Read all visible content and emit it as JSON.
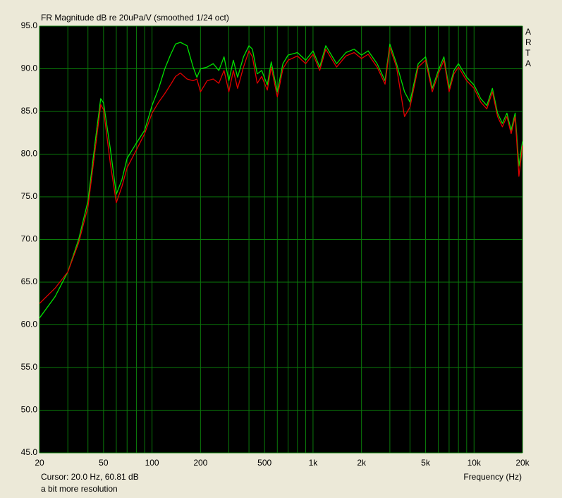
{
  "chart_data": {
    "type": "line",
    "title": "FR Magnitude dB re 20uPa/V (smoothed 1/24 oct)",
    "side_label": "ARTA",
    "cursor_readout": "Cursor: 20.0 Hz, 60.81 dB",
    "note": "a bit more resolution",
    "x_label": "Frequency (Hz)",
    "x_log": true,
    "grid": true,
    "xlim": [
      20,
      20000
    ],
    "ylim": [
      45,
      95
    ],
    "xticks": [
      20,
      50,
      100,
      200,
      500,
      {
        "value": 1000,
        "label": "1k"
      },
      {
        "value": 2000,
        "label": "2k"
      },
      {
        "value": 5000,
        "label": "5k"
      },
      {
        "value": 10000,
        "label": "10k"
      },
      {
        "value": 20000,
        "label": "20k"
      }
    ],
    "x_minor_ticks": [
      30,
      40,
      60,
      70,
      80,
      90,
      300,
      400,
      600,
      700,
      800,
      900,
      3000,
      4000,
      6000,
      7000,
      8000,
      9000
    ],
    "yticks": [
      {
        "value": 95,
        "label": "95.0"
      },
      {
        "value": 90,
        "label": "90.0"
      },
      {
        "value": 85,
        "label": "85.0"
      },
      {
        "value": 80,
        "label": "80.0"
      },
      {
        "value": 75,
        "label": "75.0"
      },
      {
        "value": 70,
        "label": "70.0"
      },
      {
        "value": 65,
        "label": "65.0"
      },
      {
        "value": 60,
        "label": "60.0"
      },
      {
        "value": 55,
        "label": "55.0"
      },
      {
        "value": 50,
        "label": "50.0"
      },
      {
        "value": 45,
        "label": "45.0"
      }
    ],
    "x": [
      20,
      25,
      30,
      35,
      40,
      45,
      48,
      50,
      55,
      60,
      65,
      70,
      80,
      90,
      100,
      110,
      120,
      130,
      140,
      150,
      165,
      180,
      190,
      200,
      220,
      240,
      260,
      280,
      300,
      320,
      340,
      370,
      400,
      420,
      450,
      480,
      520,
      550,
      600,
      650,
      700,
      800,
      900,
      1000,
      1100,
      1200,
      1400,
      1600,
      1800,
      2000,
      2200,
      2500,
      2800,
      3000,
      3300,
      3700,
      4000,
      4500,
      5000,
      5500,
      6000,
      6500,
      7000,
      7500,
      8000,
      9000,
      10000,
      11000,
      12000,
      13000,
      14000,
      15000,
      16000,
      17000,
      18000,
      19000,
      20000
    ],
    "series": [
      {
        "color": "#00e000",
        "values": [
          60.8,
          63.3,
          66.2,
          70,
          74.5,
          82.4,
          86.5,
          86,
          80.7,
          75.3,
          77,
          79.5,
          81.3,
          82.8,
          85.7,
          87.7,
          90,
          91.6,
          92.9,
          93.1,
          92.7,
          90.2,
          89,
          90,
          90.2,
          90.6,
          89.8,
          91.4,
          88.6,
          91,
          89,
          91.4,
          92.7,
          92.3,
          89.4,
          89.8,
          88.1,
          90.8,
          87.3,
          90.6,
          91.6,
          91.9,
          91,
          92.1,
          90.2,
          92.7,
          90.6,
          91.9,
          92.3,
          91.6,
          92.1,
          90.6,
          88.6,
          92.9,
          90.6,
          87.3,
          86.1,
          90.6,
          91.4,
          87.7,
          89.8,
          91.4,
          87.7,
          89.8,
          90.6,
          89,
          88.1,
          86.5,
          85.7,
          87.7,
          84.8,
          83.6,
          84.8,
          82.8,
          84.8,
          78.6,
          81.5
        ]
      },
      {
        "color": "#e00000",
        "values": [
          62.5,
          64.3,
          66.2,
          69.6,
          73.8,
          81.5,
          85.8,
          85.2,
          79,
          74.3,
          76.2,
          78.4,
          80.5,
          82.4,
          84.8,
          86.1,
          87.1,
          88.1,
          89.1,
          89.5,
          88.8,
          88.6,
          88.8,
          87.3,
          88.6,
          88.8,
          88.3,
          89.8,
          87.3,
          89.8,
          87.7,
          90.2,
          92.1,
          91.4,
          88.3,
          89.1,
          87.5,
          90.2,
          86.7,
          90,
          91,
          91.5,
          90.6,
          91.7,
          89.8,
          92.3,
          90.2,
          91.5,
          91.9,
          91.2,
          91.7,
          90.2,
          88.2,
          92.5,
          90.2,
          84.4,
          85.5,
          90.2,
          91,
          87.3,
          89.4,
          91,
          87.3,
          89.4,
          90.2,
          88.6,
          87.7,
          86.1,
          85.3,
          87.3,
          84.4,
          83.2,
          84.4,
          82.4,
          84.4,
          77.4,
          81
        ]
      }
    ]
  }
}
